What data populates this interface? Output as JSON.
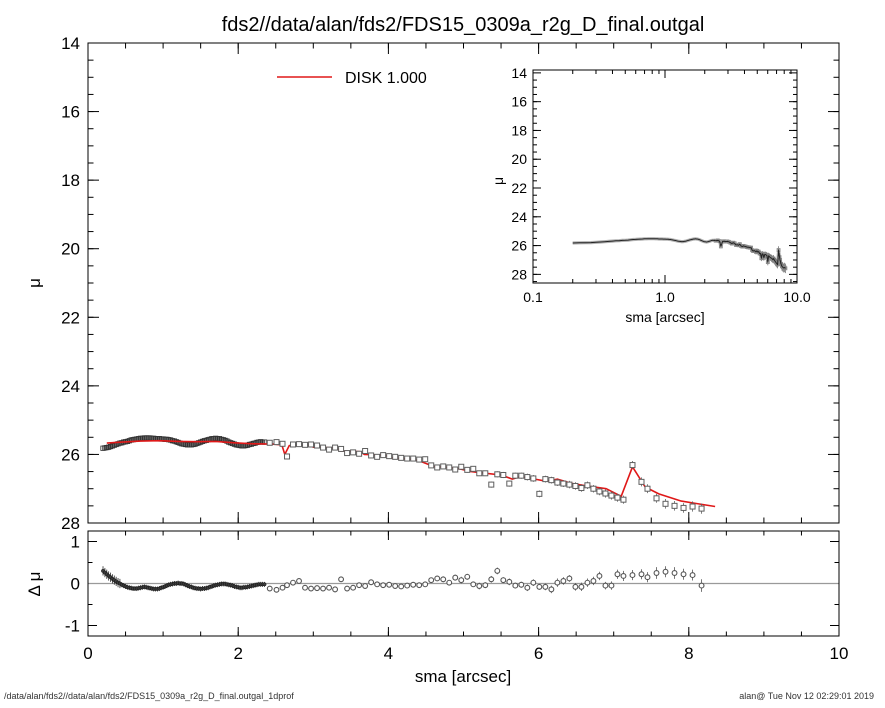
{
  "title": "fds2//data/alan/fds2/FDS15_0309a_r2g_D_final.outgal",
  "legend": {
    "label": "DISK  1.000",
    "color": "#e01818"
  },
  "labels": {
    "mu": "μ",
    "delta_mu": "Δ μ",
    "sma": "sma [arcsec]"
  },
  "footer": {
    "left": "/data/alan/fds2//data/alan/fds2/FDS15_0309a_r2g_D_final.outgal_1dprof",
    "right": "alan@  Tue Nov 12 02:29:01 2019"
  },
  "colors": {
    "background": "#ffffff",
    "axis": "#000000",
    "fit_line": "#e01818",
    "marker_stroke": "#5f5f5f",
    "dense_marker_stroke": "#333333",
    "band": "#9a9a9a",
    "zero_line": "#9a9a9a",
    "inset_line": "#222222",
    "inset_band": "#b0b0b0"
  },
  "chart_data": [
    {
      "id": "main",
      "type": "scatter",
      "title": "",
      "xlabel": "sma [arcsec]",
      "ylabel": "μ",
      "xlim": [
        0,
        10
      ],
      "ylim": [
        28,
        14
      ],
      "y_inverted": true,
      "grid": false,
      "x_ticks": [
        0,
        2,
        4,
        6,
        8,
        10
      ],
      "x_minor_step": 0.5,
      "y_ticks": [
        14,
        16,
        18,
        20,
        22,
        24,
        26,
        28
      ],
      "y_minor_step": 0.5,
      "legend_position": "top-left-inside",
      "series": [
        {
          "name": "profile-dense",
          "marker": "open-square",
          "x": [
            0.2,
            0.225,
            0.25,
            0.275,
            0.3,
            0.325,
            0.35,
            0.375,
            0.4,
            0.425,
            0.45,
            0.475,
            0.5,
            0.525,
            0.55,
            0.575,
            0.6,
            0.625,
            0.65,
            0.675,
            0.7,
            0.725,
            0.75,
            0.775,
            0.8,
            0.825,
            0.85,
            0.875,
            0.9,
            0.925,
            0.95,
            0.975,
            1.0,
            1.025,
            1.05,
            1.075,
            1.1,
            1.125,
            1.15,
            1.175,
            1.2,
            1.225,
            1.25,
            1.275,
            1.3,
            1.325,
            1.35,
            1.375,
            1.4,
            1.425,
            1.45,
            1.475,
            1.5,
            1.525,
            1.55,
            1.575,
            1.6,
            1.625,
            1.65,
            1.675,
            1.7,
            1.725,
            1.75,
            1.775,
            1.8,
            1.825,
            1.85,
            1.875,
            1.9,
            1.925,
            1.95,
            1.975,
            2.0,
            2.025,
            2.05,
            2.075,
            2.1,
            2.125,
            2.15,
            2.175,
            2.2,
            2.225,
            2.25,
            2.275,
            2.3,
            2.325,
            2.35
          ],
          "y": [
            25.82,
            25.81,
            25.8,
            25.79,
            25.77,
            25.75,
            25.73,
            25.71,
            25.69,
            25.67,
            25.66,
            25.64,
            25.63,
            25.62,
            25.6,
            25.58,
            25.57,
            25.56,
            25.55,
            25.54,
            25.53,
            25.53,
            25.52,
            25.52,
            25.52,
            25.52,
            25.53,
            25.53,
            25.54,
            25.54,
            25.54,
            25.55,
            25.55,
            25.56,
            25.56,
            25.57,
            25.58,
            25.6,
            25.61,
            25.63,
            25.65,
            25.67,
            25.69,
            25.7,
            25.71,
            25.72,
            25.72,
            25.72,
            25.71,
            25.7,
            25.68,
            25.66,
            25.64,
            25.62,
            25.6,
            25.59,
            25.57,
            25.56,
            25.54,
            25.54,
            25.53,
            25.54,
            25.54,
            25.56,
            25.57,
            25.59,
            25.61,
            25.64,
            25.66,
            25.68,
            25.7,
            25.72,
            25.73,
            25.74,
            25.75,
            25.75,
            25.74,
            25.73,
            25.71,
            25.7,
            25.68,
            25.67,
            25.65,
            25.64,
            25.63,
            25.64,
            25.64
          ]
        },
        {
          "name": "profile-outer",
          "marker": "open-square",
          "x": [
            2.42,
            2.51,
            2.59,
            2.65,
            2.73,
            2.81,
            2.89,
            2.97,
            3.05,
            3.13,
            3.21,
            3.29,
            3.37,
            3.45,
            3.53,
            3.61,
            3.69,
            3.77,
            3.85,
            3.93,
            4.01,
            4.09,
            4.17,
            4.25,
            4.33,
            4.41,
            4.49,
            4.57,
            4.65,
            4.73,
            4.81,
            4.89,
            4.97,
            5.05,
            5.13,
            5.21,
            5.29,
            5.37,
            5.45,
            5.53,
            5.61,
            5.69,
            5.77,
            5.85,
            5.93,
            6.01,
            6.09,
            6.17,
            6.25,
            6.33,
            6.41,
            6.49,
            6.57,
            6.65,
            6.73,
            6.81,
            6.89,
            6.97,
            7.05,
            7.13,
            7.25,
            7.37,
            7.45,
            7.57,
            7.69,
            7.81,
            7.93,
            8.05,
            8.17
          ],
          "y": [
            25.66,
            25.64,
            25.69,
            26.06,
            25.71,
            25.7,
            25.72,
            25.71,
            25.74,
            25.8,
            25.86,
            25.8,
            25.84,
            25.96,
            25.94,
            25.98,
            25.9,
            26.03,
            26.07,
            26.02,
            26.05,
            26.07,
            26.1,
            26.12,
            26.12,
            26.15,
            26.14,
            26.32,
            26.38,
            26.35,
            26.38,
            26.44,
            26.36,
            26.45,
            26.42,
            26.55,
            26.55,
            26.88,
            26.58,
            26.6,
            26.85,
            26.62,
            26.62,
            26.66,
            26.7,
            27.15,
            26.72,
            26.75,
            26.82,
            26.85,
            26.88,
            26.92,
            26.98,
            26.9,
            27.0,
            27.08,
            27.14,
            27.2,
            27.26,
            27.32,
            26.31,
            26.8,
            27.0,
            27.28,
            27.44,
            27.5,
            27.56,
            27.52,
            27.58
          ],
          "err": [
            0.03,
            0.03,
            0.03,
            0.03,
            0.04,
            0.04,
            0.04,
            0.04,
            0.04,
            0.04,
            0.05,
            0.05,
            0.05,
            0.05,
            0.05,
            0.05,
            0.05,
            0.06,
            0.06,
            0.06,
            0.06,
            0.06,
            0.06,
            0.06,
            0.07,
            0.07,
            0.07,
            0.07,
            0.07,
            0.07,
            0.08,
            0.08,
            0.08,
            0.08,
            0.08,
            0.08,
            0.08,
            0.09,
            0.09,
            0.09,
            0.09,
            0.09,
            0.09,
            0.1,
            0.1,
            0.1,
            0.1,
            0.1,
            0.1,
            0.1,
            0.11,
            0.11,
            0.11,
            0.11,
            0.11,
            0.11,
            0.12,
            0.12,
            0.12,
            0.12,
            0.12,
            0.13,
            0.13,
            0.13,
            0.14,
            0.14,
            0.14,
            0.15,
            0.15
          ]
        },
        {
          "name": "DISK 1.000",
          "type": "line",
          "color": "#e01818",
          "x": [
            0.25,
            0.45,
            0.7,
            0.95,
            1.2,
            1.45,
            1.7,
            1.95,
            2.2,
            2.45,
            2.58,
            2.62,
            2.68,
            2.95,
            3.0,
            3.3,
            3.37,
            3.62,
            3.68,
            3.95,
            4.05,
            4.35,
            4.45,
            4.6,
            4.8,
            4.95,
            5.1,
            5.3,
            5.5,
            5.65,
            5.75,
            5.95,
            6.1,
            6.25,
            6.45,
            6.65,
            6.9,
            7.1,
            7.25,
            7.42,
            7.6,
            7.9,
            8.1,
            8.35
          ],
          "y": [
            25.67,
            25.64,
            25.61,
            25.6,
            25.62,
            25.63,
            25.62,
            25.66,
            25.69,
            25.7,
            25.72,
            26.0,
            25.74,
            25.73,
            25.79,
            25.81,
            25.9,
            25.92,
            26.0,
            26.02,
            26.1,
            26.15,
            26.22,
            26.35,
            26.38,
            26.42,
            26.5,
            26.55,
            26.6,
            26.72,
            26.65,
            26.72,
            26.78,
            26.72,
            26.85,
            26.92,
            27.0,
            27.22,
            26.36,
            26.95,
            27.15,
            27.36,
            27.43,
            27.52
          ]
        }
      ]
    },
    {
      "id": "inset",
      "type": "line",
      "xlabel": "sma [arcsec]",
      "ylabel": "μ",
      "xscale": "log",
      "xlim": [
        0.1,
        10
      ],
      "ylim": [
        28.6,
        13.8
      ],
      "y_inverted": true,
      "grid": false,
      "x_ticks": [
        {
          "v": 0.1,
          "label": "0.1"
        },
        {
          "v": 1,
          "label": "1.0"
        },
        {
          "v": 10,
          "label": "10.0"
        }
      ],
      "y_ticks": [
        14,
        16,
        18,
        20,
        22,
        24,
        26,
        28
      ],
      "y_minor_step": 0.5,
      "note": "same surface-brightness profile data as main panel, log-x"
    },
    {
      "id": "residual",
      "type": "scatter",
      "ylabel": "Δ μ",
      "xlim": [
        0,
        10
      ],
      "ylim": [
        -1.25,
        1.25
      ],
      "grid": false,
      "x_ticks": [
        0,
        2,
        4,
        6,
        8,
        10
      ],
      "x_minor_step": 0.5,
      "y_ticks": [
        1,
        0,
        -1
      ],
      "y_minor_ticks": [
        0.5,
        -0.5
      ],
      "zero_line": 0,
      "series": [
        {
          "name": "residual-dense",
          "marker": "dot",
          "err_const": 0.06,
          "x": [
            0.2,
            0.225,
            0.25,
            0.275,
            0.3,
            0.325,
            0.35,
            0.375,
            0.4,
            0.425,
            0.45,
            0.475,
            0.5,
            0.525,
            0.55,
            0.575,
            0.6,
            0.625,
            0.65,
            0.675,
            0.7,
            0.725,
            0.75,
            0.775,
            0.8,
            0.825,
            0.85,
            0.875,
            0.9,
            0.925,
            0.95,
            0.975,
            1.0,
            1.025,
            1.05,
            1.075,
            1.1,
            1.125,
            1.15,
            1.175,
            1.2,
            1.225,
            1.25,
            1.275,
            1.3,
            1.325,
            1.35,
            1.375,
            1.4,
            1.425,
            1.45,
            1.475,
            1.5,
            1.525,
            1.55,
            1.575,
            1.6,
            1.625,
            1.65,
            1.675,
            1.7,
            1.725,
            1.75,
            1.775,
            1.8,
            1.825,
            1.85,
            1.875,
            1.9,
            1.925,
            1.95,
            1.975,
            2.0,
            2.025,
            2.05,
            2.075,
            2.1,
            2.125,
            2.15,
            2.175,
            2.2,
            2.225,
            2.25,
            2.275,
            2.3,
            2.325,
            2.35
          ],
          "y": [
            0.3,
            0.26,
            0.22,
            0.18,
            0.15,
            0.11,
            0.08,
            0.05,
            0.02,
            0.0,
            -0.03,
            -0.05,
            -0.07,
            -0.09,
            -0.1,
            -0.11,
            -0.12,
            -0.12,
            -0.12,
            -0.11,
            -0.1,
            -0.09,
            -0.08,
            -0.09,
            -0.1,
            -0.11,
            -0.12,
            -0.13,
            -0.13,
            -0.13,
            -0.12,
            -0.1,
            -0.09,
            -0.07,
            -0.05,
            -0.03,
            -0.02,
            -0.01,
            0.0,
            0.0,
            0.01,
            0.0,
            0.0,
            -0.01,
            -0.03,
            -0.05,
            -0.07,
            -0.08,
            -0.1,
            -0.11,
            -0.12,
            -0.12,
            -0.13,
            -0.12,
            -0.12,
            -0.11,
            -0.1,
            -0.08,
            -0.07,
            -0.05,
            -0.04,
            -0.03,
            -0.02,
            -0.01,
            -0.01,
            -0.01,
            -0.02,
            -0.03,
            -0.04,
            -0.05,
            -0.07,
            -0.08,
            -0.09,
            -0.1,
            -0.1,
            -0.09,
            -0.09,
            -0.08,
            -0.07,
            -0.06,
            -0.05,
            -0.04,
            -0.03,
            -0.02,
            -0.02,
            -0.02,
            -0.02
          ]
        },
        {
          "name": "residual-outer",
          "marker": "open-circle",
          "x": [
            2.42,
            2.51,
            2.59,
            2.65,
            2.73,
            2.81,
            2.89,
            2.97,
            3.05,
            3.13,
            3.21,
            3.29,
            3.37,
            3.45,
            3.53,
            3.61,
            3.69,
            3.77,
            3.85,
            3.93,
            4.01,
            4.09,
            4.17,
            4.25,
            4.33,
            4.41,
            4.49,
            4.57,
            4.65,
            4.73,
            4.81,
            4.89,
            4.97,
            5.05,
            5.13,
            5.21,
            5.29,
            5.37,
            5.45,
            5.53,
            5.61,
            5.69,
            5.77,
            5.85,
            5.93,
            6.01,
            6.09,
            6.17,
            6.25,
            6.33,
            6.41,
            6.49,
            6.57,
            6.65,
            6.73,
            6.81,
            6.89,
            6.97,
            7.05,
            7.13,
            7.25,
            7.37,
            7.45,
            7.57,
            7.69,
            7.81,
            7.93,
            8.05,
            8.17
          ],
          "y": [
            -0.12,
            -0.15,
            -0.1,
            -0.04,
            0.02,
            0.06,
            -0.1,
            -0.12,
            -0.11,
            -0.12,
            -0.1,
            -0.14,
            0.1,
            -0.12,
            -0.1,
            -0.04,
            -0.06,
            0.03,
            -0.02,
            -0.04,
            -0.03,
            -0.06,
            -0.07,
            -0.05,
            -0.03,
            -0.04,
            -0.02,
            0.08,
            0.12,
            0.1,
            0.02,
            0.14,
            0.08,
            0.16,
            -0.02,
            -0.06,
            -0.04,
            0.1,
            0.3,
            0.08,
            0.04,
            -0.05,
            -0.03,
            -0.1,
            0.02,
            -0.08,
            -0.08,
            -0.14,
            0.02,
            0.06,
            0.12,
            -0.08,
            -0.08,
            0.02,
            0.06,
            0.18,
            -0.05,
            -0.05,
            0.22,
            0.18,
            0.2,
            0.22,
            0.15,
            0.25,
            0.28,
            0.25,
            0.22,
            0.2,
            -0.05
          ],
          "err": [
            0.05,
            0.05,
            0.05,
            0.05,
            0.05,
            0.05,
            0.06,
            0.06,
            0.06,
            0.06,
            0.06,
            0.07,
            0.06,
            0.06,
            0.05,
            0.05,
            0.06,
            0.05,
            0.05,
            0.05,
            0.05,
            0.06,
            0.05,
            0.06,
            0.05,
            0.06,
            0.05,
            0.06,
            0.06,
            0.07,
            0.06,
            0.07,
            0.08,
            0.07,
            0.06,
            0.08,
            0.07,
            0.08,
            0.08,
            0.07,
            0.08,
            0.07,
            0.07,
            0.08,
            0.08,
            0.07,
            0.08,
            0.09,
            0.1,
            0.09,
            0.08,
            0.09,
            0.1,
            0.1,
            0.1,
            0.1,
            0.09,
            0.1,
            0.11,
            0.12,
            0.12,
            0.12,
            0.12,
            0.14,
            0.13,
            0.14,
            0.13,
            0.13,
            0.15
          ]
        }
      ]
    }
  ]
}
